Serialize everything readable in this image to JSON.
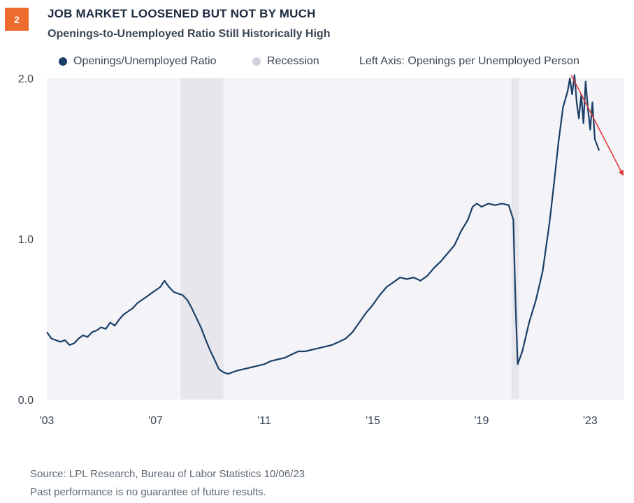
{
  "badge": "2",
  "title": "JOB MARKET LOOSENED BUT NOT BY MUCH",
  "subtitle": "Openings-to-Unemployed Ratio Still Historically High",
  "colors": {
    "badge": "#ec6b2d",
    "series": "#1c3f66",
    "recession": "#e6e6ec",
    "plot_bg": "#f3f3f8",
    "trend_arrow": "#e03a3a"
  },
  "legend": {
    "series_label": "Openings/Unemployed Ratio",
    "recession_label": "Recession",
    "axis_note": "Left Axis: Openings per Unemployed Person"
  },
  "footer": {
    "source": "Source: LPL Research, Bureau of Labor Statistics  10/06/23",
    "disclaimer": "Past performance is no guarantee of future results."
  },
  "chart_data": {
    "type": "line",
    "ylim": [
      0.0,
      2.0
    ],
    "xlim": [
      2003.0,
      2024.25
    ],
    "y_ticks": [
      {
        "value": 0.0,
        "label": "0.0"
      },
      {
        "value": 1.0,
        "label": "1.0"
      },
      {
        "value": 2.0,
        "label": "2.0"
      }
    ],
    "x_ticks": [
      {
        "value": 2003,
        "label": "'03"
      },
      {
        "value": 2007,
        "label": "'07"
      },
      {
        "value": 2011,
        "label": "'11"
      },
      {
        "value": 2015,
        "label": "'15"
      },
      {
        "value": 2019,
        "label": "'19"
      },
      {
        "value": 2023,
        "label": "'23"
      }
    ],
    "recessions": [
      [
        2007.92,
        2009.5
      ],
      [
        2020.1,
        2020.37
      ]
    ],
    "series": [
      {
        "points": [
          [
            2003.0,
            0.42
          ],
          [
            2003.17,
            0.38
          ],
          [
            2003.33,
            0.37
          ],
          [
            2003.5,
            0.36
          ],
          [
            2003.67,
            0.37
          ],
          [
            2003.83,
            0.34
          ],
          [
            2004.0,
            0.35
          ],
          [
            2004.17,
            0.38
          ],
          [
            2004.33,
            0.4
          ],
          [
            2004.5,
            0.39
          ],
          [
            2004.67,
            0.42
          ],
          [
            2004.83,
            0.43
          ],
          [
            2005.0,
            0.45
          ],
          [
            2005.17,
            0.44
          ],
          [
            2005.33,
            0.48
          ],
          [
            2005.5,
            0.46
          ],
          [
            2005.67,
            0.5
          ],
          [
            2005.83,
            0.53
          ],
          [
            2006.0,
            0.55
          ],
          [
            2006.17,
            0.57
          ],
          [
            2006.33,
            0.6
          ],
          [
            2006.5,
            0.62
          ],
          [
            2006.67,
            0.64
          ],
          [
            2006.83,
            0.66
          ],
          [
            2007.0,
            0.68
          ],
          [
            2007.17,
            0.7
          ],
          [
            2007.25,
            0.72
          ],
          [
            2007.33,
            0.74
          ],
          [
            2007.5,
            0.7
          ],
          [
            2007.67,
            0.67
          ],
          [
            2007.83,
            0.66
          ],
          [
            2008.0,
            0.65
          ],
          [
            2008.17,
            0.62
          ],
          [
            2008.33,
            0.57
          ],
          [
            2008.5,
            0.51
          ],
          [
            2008.67,
            0.45
          ],
          [
            2008.83,
            0.38
          ],
          [
            2009.0,
            0.31
          ],
          [
            2009.17,
            0.25
          ],
          [
            2009.33,
            0.19
          ],
          [
            2009.5,
            0.17
          ],
          [
            2009.67,
            0.16
          ],
          [
            2009.83,
            0.17
          ],
          [
            2010.0,
            0.18
          ],
          [
            2010.25,
            0.19
          ],
          [
            2010.5,
            0.2
          ],
          [
            2010.75,
            0.21
          ],
          [
            2011.0,
            0.22
          ],
          [
            2011.25,
            0.24
          ],
          [
            2011.5,
            0.25
          ],
          [
            2011.75,
            0.26
          ],
          [
            2012.0,
            0.28
          ],
          [
            2012.25,
            0.3
          ],
          [
            2012.5,
            0.3
          ],
          [
            2012.75,
            0.31
          ],
          [
            2013.0,
            0.32
          ],
          [
            2013.25,
            0.33
          ],
          [
            2013.5,
            0.34
          ],
          [
            2013.75,
            0.36
          ],
          [
            2014.0,
            0.38
          ],
          [
            2014.25,
            0.42
          ],
          [
            2014.5,
            0.48
          ],
          [
            2014.75,
            0.54
          ],
          [
            2015.0,
            0.59
          ],
          [
            2015.25,
            0.65
          ],
          [
            2015.5,
            0.7
          ],
          [
            2015.75,
            0.73
          ],
          [
            2016.0,
            0.76
          ],
          [
            2016.25,
            0.75
          ],
          [
            2016.5,
            0.76
          ],
          [
            2016.75,
            0.74
          ],
          [
            2017.0,
            0.77
          ],
          [
            2017.25,
            0.82
          ],
          [
            2017.5,
            0.86
          ],
          [
            2017.75,
            0.91
          ],
          [
            2018.0,
            0.96
          ],
          [
            2018.25,
            1.05
          ],
          [
            2018.5,
            1.12
          ],
          [
            2018.67,
            1.2
          ],
          [
            2018.83,
            1.22
          ],
          [
            2019.0,
            1.2
          ],
          [
            2019.25,
            1.22
          ],
          [
            2019.5,
            1.21
          ],
          [
            2019.75,
            1.22
          ],
          [
            2020.0,
            1.21
          ],
          [
            2020.17,
            1.12
          ],
          [
            2020.25,
            0.6
          ],
          [
            2020.33,
            0.22
          ],
          [
            2020.5,
            0.3
          ],
          [
            2020.75,
            0.48
          ],
          [
            2021.0,
            0.62
          ],
          [
            2021.25,
            0.8
          ],
          [
            2021.5,
            1.1
          ],
          [
            2021.67,
            1.35
          ],
          [
            2021.83,
            1.6
          ],
          [
            2022.0,
            1.82
          ],
          [
            2022.17,
            1.92
          ],
          [
            2022.25,
            2.0
          ],
          [
            2022.33,
            1.9
          ],
          [
            2022.42,
            2.02
          ],
          [
            2022.5,
            1.85
          ],
          [
            2022.58,
            1.75
          ],
          [
            2022.67,
            1.9
          ],
          [
            2022.75,
            1.72
          ],
          [
            2022.83,
            1.98
          ],
          [
            2022.92,
            1.8
          ],
          [
            2023.0,
            1.68
          ],
          [
            2023.08,
            1.85
          ],
          [
            2023.17,
            1.62
          ],
          [
            2023.33,
            1.55
          ]
        ]
      }
    ],
    "trend": [
      [
        2022.3,
        2.02
      ],
      [
        2024.2,
        1.4
      ]
    ]
  }
}
